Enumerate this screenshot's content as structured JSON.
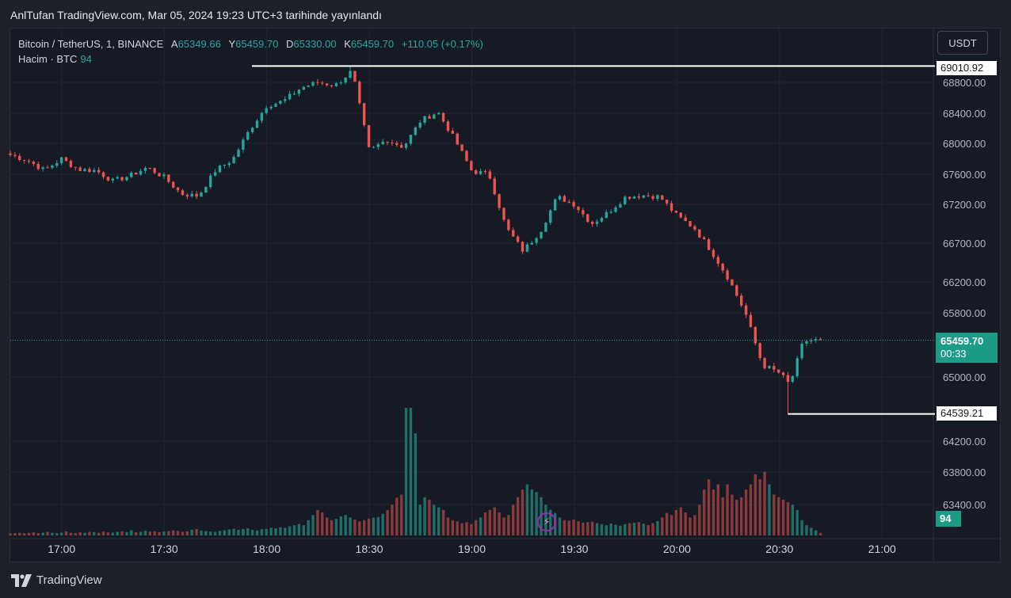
{
  "caption": "AnlTufan TradingView.com, Mar 05, 2024 19:23 UTC+3 tarihinde yayınlandı",
  "legend": {
    "symbol": "Bitcoin / TetherUS, 1, BINANCE",
    "open_label": "A",
    "open": "65349.66",
    "high_label": "Y",
    "high": "65459.70",
    "low_label": "D",
    "low": "65330.00",
    "close_label": "K",
    "close": "65459.70",
    "change": "+110.05 (+0.17%)",
    "volume_label": "Hacim · BTC",
    "volume": "94"
  },
  "currency_button": "USDT",
  "footer_brand": "TradingView",
  "colors": {
    "up": "#26a69a",
    "down": "#ef5350",
    "vol_up": "#1f6f66",
    "vol_down": "#8a3a3a",
    "background": "#161a25",
    "grid": "#232632"
  },
  "price_tags": {
    "high": "69010.92",
    "low": "64539.21",
    "last": "65459.70",
    "countdown": "00:33",
    "volume": "94"
  },
  "chart_data": {
    "type": "candlestick",
    "x_ticks": [
      "17:00",
      "17:30",
      "18:00",
      "18:30",
      "19:00",
      "19:30",
      "20:00",
      "20:30",
      "21:00"
    ],
    "y_ticks": [
      "68800.00",
      "68400.00",
      "68000.00",
      "67600.00",
      "67200.00",
      "66700.00",
      "66200.00",
      "65800.00",
      "65000.00",
      "64200.00",
      "63800.00",
      "63400.00"
    ],
    "x_start_minutes": 1005,
    "x_range_minutes": [
      1005,
      1275
    ],
    "y_ticks_numeric": [
      68800,
      68400,
      68000,
      67600,
      67200,
      66700,
      66200,
      65800,
      65000,
      64200,
      63800,
      63400
    ],
    "high_marker": 69010.92,
    "low_marker": 64539.21,
    "last_price": 65459.7,
    "anchors": [
      [
        0,
        67850
      ],
      [
        5,
        67780
      ],
      [
        10,
        67650
      ],
      [
        15,
        67800
      ],
      [
        20,
        67660
      ],
      [
        25,
        67650
      ],
      [
        30,
        67510
      ],
      [
        35,
        67580
      ],
      [
        40,
        67690
      ],
      [
        45,
        67560
      ],
      [
        50,
        67340
      ],
      [
        55,
        67310
      ],
      [
        60,
        67650
      ],
      [
        65,
        67790
      ],
      [
        70,
        68180
      ],
      [
        75,
        68500
      ],
      [
        80,
        68560
      ],
      [
        85,
        68730
      ],
      [
        90,
        68800
      ],
      [
        95,
        68760
      ],
      [
        100,
        68950
      ],
      [
        105,
        67900
      ],
      [
        110,
        68050
      ],
      [
        115,
        67950
      ],
      [
        120,
        68300
      ],
      [
        125,
        68420
      ],
      [
        130,
        68050
      ],
      [
        135,
        67640
      ],
      [
        140,
        67600
      ],
      [
        145,
        66900
      ],
      [
        150,
        66600
      ],
      [
        155,
        66850
      ],
      [
        160,
        67300
      ],
      [
        165,
        67200
      ],
      [
        170,
        66950
      ],
      [
        175,
        67100
      ],
      [
        180,
        67300
      ],
      [
        185,
        67320
      ],
      [
        190,
        67300
      ],
      [
        195,
        67050
      ],
      [
        200,
        66900
      ],
      [
        205,
        66600
      ],
      [
        210,
        66250
      ],
      [
        215,
        65800
      ],
      [
        220,
        65150
      ],
      [
        225,
        65050
      ],
      [
        228,
        64900
      ],
      [
        232,
        65450
      ],
      [
        237,
        65460
      ]
    ],
    "volume": {
      "range": [
        0,
        500
      ],
      "values": [
        8,
        9,
        10,
        8,
        10,
        12,
        9,
        11,
        14,
        10,
        9,
        11,
        16,
        10,
        9,
        12,
        10,
        14,
        13,
        10,
        15,
        12,
        11,
        14,
        16,
        13,
        20,
        12,
        14,
        18,
        15,
        16,
        13,
        15,
        17,
        20,
        18,
        14,
        16,
        22,
        25,
        19,
        17,
        15,
        14,
        18,
        20,
        24,
        26,
        22,
        25,
        28,
        22,
        19,
        24,
        26,
        30,
        28,
        32,
        30,
        36,
        40,
        45,
        40,
        60,
        80,
        100,
        90,
        70,
        60,
        65,
        75,
        80,
        70,
        62,
        55,
        60,
        66,
        70,
        72,
        85,
        100,
        120,
        148,
        160,
        500,
        500,
        400,
        120,
        150,
        140,
        120,
        110,
        100,
        70,
        60,
        55,
        48,
        52,
        44,
        60,
        70,
        90,
        100,
        110,
        90,
        70,
        80,
        120,
        150,
        180,
        200,
        180,
        170,
        150,
        120,
        100,
        88,
        70,
        60,
        58,
        62,
        56,
        50,
        52,
        54,
        48,
        44,
        40,
        46,
        42,
        38,
        44,
        48,
        50,
        52,
        46,
        40,
        48,
        56,
        70,
        88,
        80,
        100,
        110,
        90,
        70,
        80,
        120,
        180,
        220,
        180,
        200,
        150,
        200,
        160,
        140,
        150,
        180,
        200,
        240,
        220,
        250,
        200,
        160,
        150,
        140,
        130,
        120,
        100,
        60,
        40,
        30,
        20,
        10
      ]
    }
  }
}
